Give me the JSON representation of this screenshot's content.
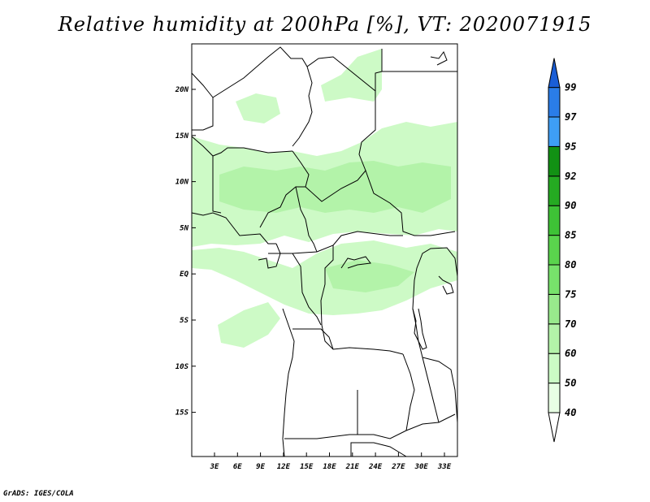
{
  "title": "Relative humidity at 200hPa [%], VT: 2020071915",
  "credit": "GrADS: IGES/COLA",
  "map": {
    "lat_labels": [
      "20N",
      "15N",
      "10N",
      "5N",
      "EQ",
      "5S",
      "10S",
      "15S"
    ],
    "lon_labels": [
      "3E",
      "6E",
      "9E",
      "12E",
      "15E",
      "18E",
      "21E",
      "24E",
      "27E",
      "30E",
      "33E"
    ]
  },
  "colorbar": {
    "levels": [
      "40",
      "50",
      "60",
      "70",
      "75",
      "80",
      "85",
      "90",
      "92",
      "95",
      "97",
      "99"
    ],
    "colors": [
      "#e8ffe4",
      "#cbfbc5",
      "#b3f3a9",
      "#98ea8c",
      "#77e26b",
      "#5ad44d",
      "#3ec236",
      "#25aa22",
      "#129114",
      "#3e9ef5",
      "#2a7de8",
      "#1a5ed6"
    ]
  },
  "shading_colors": {
    "light": "#cdfac6",
    "medium": "#b3f3a9"
  }
}
